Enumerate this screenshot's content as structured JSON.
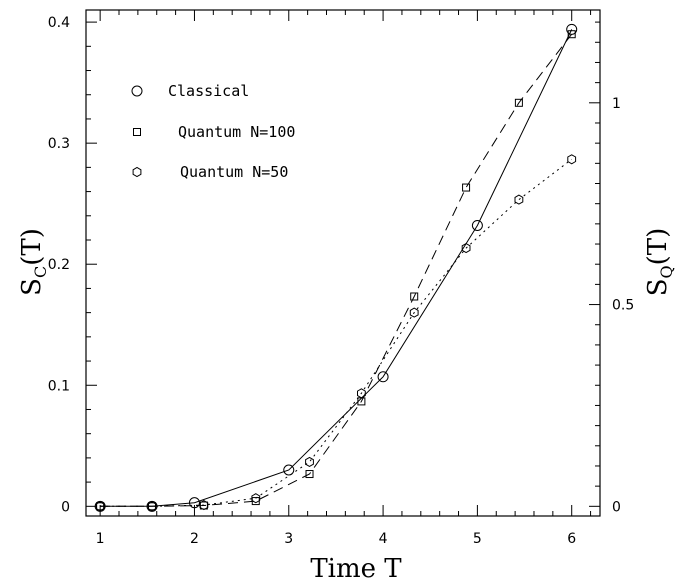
{
  "chart_data": {
    "type": "line",
    "xlabel": "Time T",
    "ylabel_left": {
      "main": "S",
      "sub": "C",
      "rest": "(T)"
    },
    "ylabel_right": {
      "main": "S",
      "sub": "Q",
      "rest": "(T)"
    },
    "xlim": [
      0.85,
      6.3
    ],
    "ylim_left": [
      -0.008,
      0.41
    ],
    "ylim_right": [
      -0.024,
      1.23
    ],
    "x_ticks": [
      1,
      2,
      3,
      4,
      5,
      6
    ],
    "x_tick_labels": [
      "1",
      "2",
      "3",
      "4",
      "5",
      "6"
    ],
    "y_left_ticks": [
      0,
      0.1,
      0.2,
      0.3,
      0.4
    ],
    "y_left_tick_labels": [
      "0",
      "0.1",
      "0.2",
      "0.3",
      "0.4"
    ],
    "y_right_ticks": [
      0,
      0.5,
      1
    ],
    "y_right_tick_labels": [
      "0",
      "0.5",
      "1"
    ],
    "legend_position": "upper-left",
    "series": [
      {
        "name": "Classical",
        "axis": "left",
        "marker": "circle",
        "line": "solid",
        "x": [
          1,
          1.55,
          2,
          3,
          4,
          5,
          6
        ],
        "y": [
          0.0,
          0.0,
          0.003,
          0.03,
          0.107,
          0.232,
          0.394
        ]
      },
      {
        "name": "Quantum N=100",
        "axis": "right",
        "marker": "square",
        "line": "dashed",
        "x": [
          1,
          1.55,
          2.1,
          2.65,
          3.22,
          3.77,
          4.33,
          4.88,
          5.44,
          6
        ],
        "y": [
          0.0,
          0.0,
          0.002,
          0.013,
          0.08,
          0.26,
          0.52,
          0.79,
          1.0,
          1.17
        ]
      },
      {
        "name": "Quantum N=50",
        "axis": "right",
        "marker": "hexagon",
        "line": "dotted",
        "x": [
          1,
          1.55,
          2.1,
          2.65,
          3.22,
          3.77,
          4.33,
          4.88,
          5.44,
          6
        ],
        "y": [
          0.0,
          0.0,
          0.003,
          0.02,
          0.11,
          0.28,
          0.48,
          0.64,
          0.76,
          0.86
        ]
      }
    ]
  }
}
